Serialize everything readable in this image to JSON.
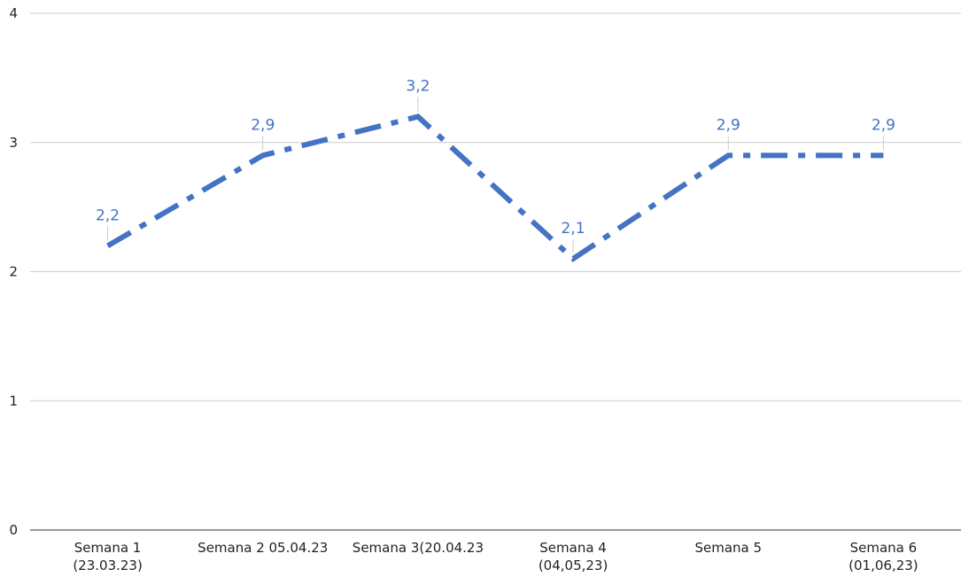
{
  "chart_data": {
    "type": "line",
    "categories": [
      "Semana 1\n(23.03.23)",
      "Semana 2 05.04.23",
      "Semana 3(20.04.23",
      "Semana 4\n(04,05,23)",
      "Semana 5",
      "Semana 6\n(01,06,23)"
    ],
    "series": [
      {
        "color": "#4472c4",
        "values": [
          2.2,
          2.9,
          3.2,
          2.1,
          2.9,
          2.9
        ],
        "value_labels": [
          "2,2",
          "2,9",
          "3,2",
          "2,1",
          "2,9",
          "2,9"
        ]
      }
    ],
    "ylim": [
      0,
      4
    ],
    "yticks": [
      0,
      1,
      2,
      3,
      4
    ],
    "grid": true
  }
}
